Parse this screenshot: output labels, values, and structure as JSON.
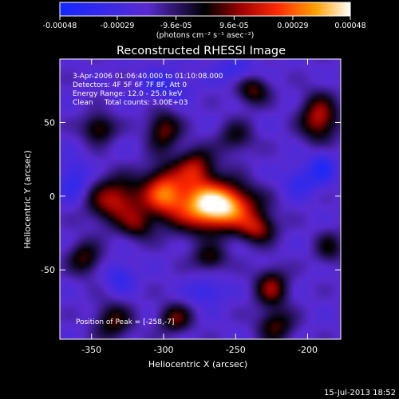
{
  "chart_data": {
    "type": "heatmap",
    "title": "Reconstructed RHESSI Image",
    "xlabel": "Heliocentric X (arcsec)",
    "ylabel": "Heliocentric Y (arcsec)",
    "xlim": [
      -372,
      -177
    ],
    "ylim": [
      -97,
      93
    ],
    "x_ticks": [
      -350,
      -300,
      -250,
      -200
    ],
    "y_ticks": [
      -50,
      0,
      50
    ],
    "colorbar": {
      "ticks": [
        -0.00048,
        -0.00029,
        -9.6e-05,
        9.6e-05,
        0.00029,
        0.00048
      ],
      "tick_labels": [
        "-0.00048",
        "-0.00029",
        "-9.6e-05",
        "9.6e-05",
        "0.00029",
        "0.00048"
      ],
      "range": [
        -0.00048,
        0.00048
      ],
      "unit_label": "(photons cm⁻² s⁻¹ asec⁻²)"
    },
    "annotations": [
      "3-Apr-2006 01:06:40.000 to 01:10:08.000",
      "Detectors: 4F 5F 6F 7F 8F, Att 0",
      "Energy Range: 12.0 - 25.0 keV",
      "Clean     Total counts: 3.00E+03"
    ],
    "peak_label": "Position of Peak = [-258,-7]",
    "peak": {
      "x": -258,
      "y": -7,
      "value": 0.00048
    },
    "sources": [
      {
        "x": -258,
        "y": -7,
        "sx": 16,
        "sy": 10,
        "a": 0.00052
      },
      {
        "x": -275,
        "y": -5,
        "sx": 16,
        "sy": 14,
        "a": 0.00034
      },
      {
        "x": -300,
        "y": 3,
        "sx": 10,
        "sy": 12,
        "a": 0.0004
      },
      {
        "x": -333,
        "y": -3,
        "sx": 14,
        "sy": 11,
        "a": 0.00036
      },
      {
        "x": -278,
        "y": 20,
        "sx": 9,
        "sy": 9,
        "a": 0.00028
      },
      {
        "x": -300,
        "y": 45,
        "sx": 8,
        "sy": 9,
        "a": 0.00028
      },
      {
        "x": -235,
        "y": -22,
        "sx": 9,
        "sy": 7,
        "a": 0.0003
      },
      {
        "x": -345,
        "y": 46,
        "sx": 8,
        "sy": 7,
        "a": 0.00026
      },
      {
        "x": -192,
        "y": 53,
        "sx": 9,
        "sy": 11,
        "a": 0.00036
      },
      {
        "x": -238,
        "y": 72,
        "sx": 8,
        "sy": 7,
        "a": 0.00026
      },
      {
        "x": -268,
        "y": -42,
        "sx": 8,
        "sy": 6,
        "a": 0.00022
      },
      {
        "x": -225,
        "y": -62,
        "sx": 8,
        "sy": 9,
        "a": 0.0003
      },
      {
        "x": -355,
        "y": -42,
        "sx": 8,
        "sy": 8,
        "a": 0.00024
      },
      {
        "x": -335,
        "y": -85,
        "sx": 9,
        "sy": 9,
        "a": 0.00024
      },
      {
        "x": -292,
        "y": -83,
        "sx": 8,
        "sy": 7,
        "a": 0.00026
      },
      {
        "x": -222,
        "y": -88,
        "sx": 9,
        "sy": 8,
        "a": 0.00024
      },
      {
        "x": -250,
        "y": 40,
        "sx": 9,
        "sy": 8,
        "a": 0.00018
      },
      {
        "x": -318,
        "y": -20,
        "sx": 8,
        "sy": 7,
        "a": 0.0002
      },
      {
        "x": -185,
        "y": -35,
        "sx": 7,
        "sy": 8,
        "a": 0.00018
      },
      {
        "x": -205,
        "y": 10,
        "sx": 8,
        "sy": 7,
        "a": -0.00016
      },
      {
        "x": -300,
        "y": 75,
        "sx": 12,
        "sy": 8,
        "a": -0.00014
      },
      {
        "x": -362,
        "y": 10,
        "sx": 8,
        "sy": 10,
        "a": -0.00018
      },
      {
        "x": -330,
        "y": -55,
        "sx": 7,
        "sy": 7,
        "a": -0.00016
      },
      {
        "x": -270,
        "y": -65,
        "sx": 9,
        "sy": 6,
        "a": -0.00015
      },
      {
        "x": -190,
        "y": 20,
        "sx": 6,
        "sy": 8,
        "a": -0.0002
      },
      {
        "x": -250,
        "y": 85,
        "sx": 10,
        "sy": 6,
        "a": -0.00014
      }
    ]
  },
  "footer": {
    "timestamp": "15-Jul-2013 18:52"
  }
}
